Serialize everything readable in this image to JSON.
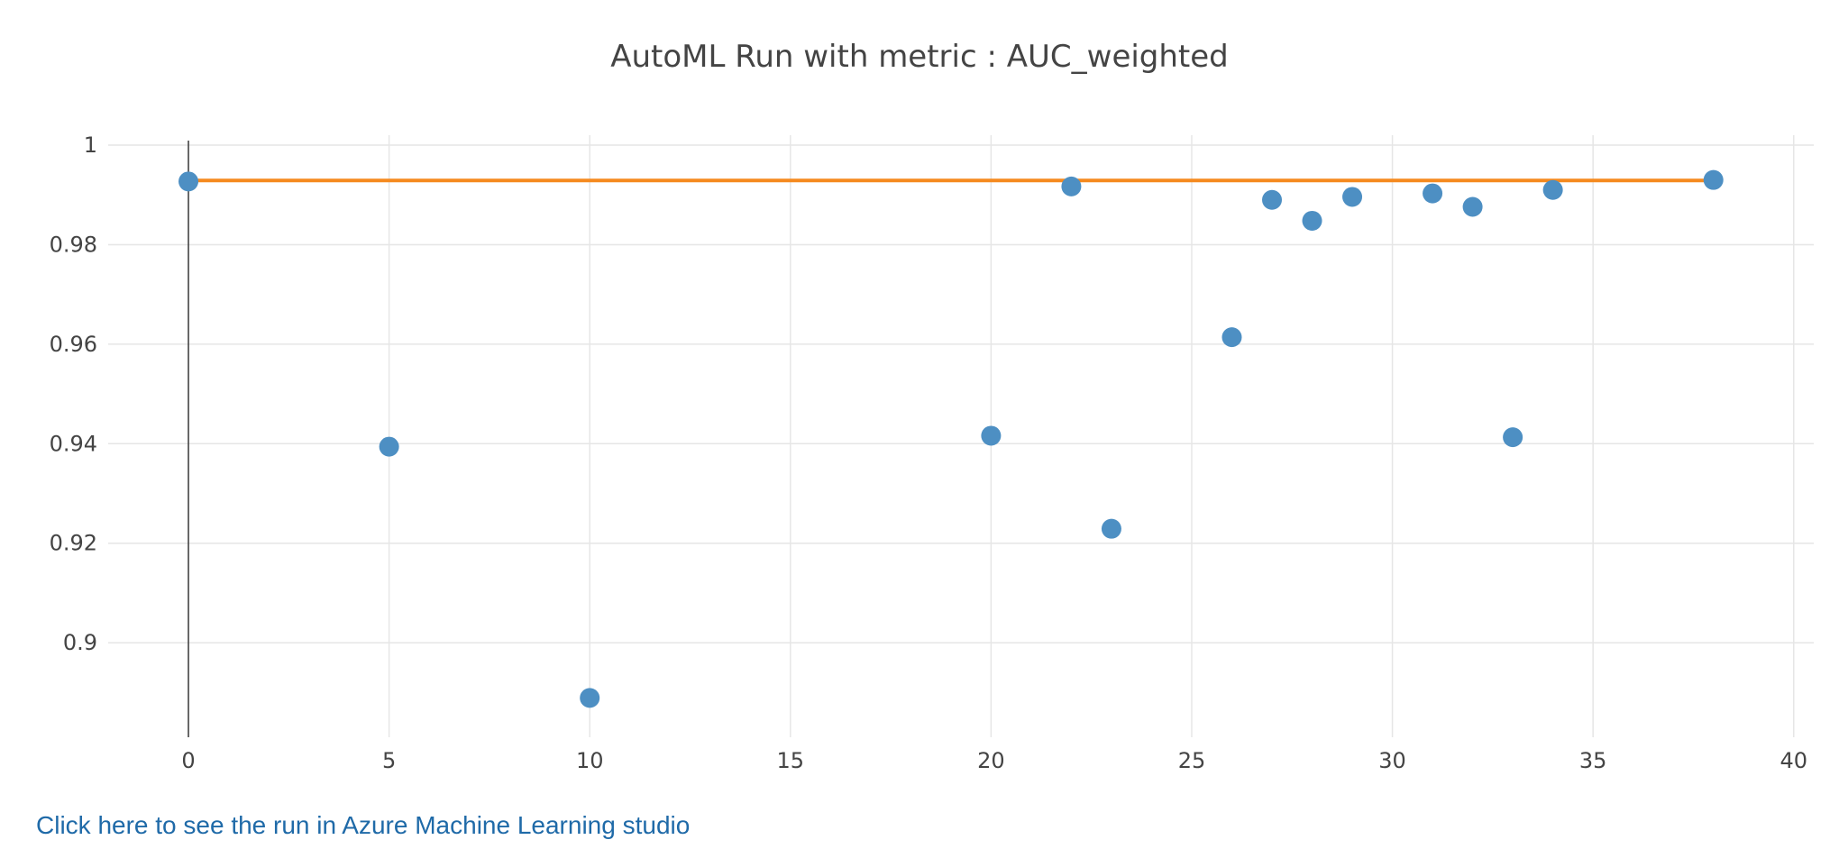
{
  "chart_data": {
    "type": "scatter",
    "title": "AutoML Run with metric : AUC_weighted",
    "xlabel": "",
    "ylabel": "",
    "xlim": [
      -2,
      40.5
    ],
    "ylim": [
      0.881,
      1.002
    ],
    "x_ticks": [
      0,
      5,
      10,
      15,
      20,
      25,
      30,
      35,
      40
    ],
    "y_ticks": [
      0.9,
      0.92,
      0.94,
      0.96,
      0.98,
      1
    ],
    "y_tick_labels": [
      "0.9",
      "0.92",
      "0.94",
      "0.96",
      "0.98",
      "1"
    ],
    "grid": true,
    "colors": {
      "points": "#4d8fc3",
      "best_line": "#f58a1f",
      "grid": "#e6e6e6",
      "zero_line": "#444444"
    },
    "series": [
      {
        "type": "scatter",
        "x": [
          0,
          5,
          10,
          20,
          22,
          23,
          26,
          27,
          28,
          29,
          31,
          32,
          33,
          34,
          38
        ],
        "y": [
          0.9927,
          0.9394,
          0.8889,
          0.9416,
          0.9917,
          0.9229,
          0.9614,
          0.989,
          0.9848,
          0.9896,
          0.9903,
          0.9876,
          0.9413,
          0.991,
          0.993
        ]
      },
      {
        "type": "line",
        "x": [
          0,
          38
        ],
        "y": [
          0.9929,
          0.9929
        ]
      }
    ]
  },
  "link": {
    "text": "Click here to see the run in Azure Machine Learning studio"
  }
}
